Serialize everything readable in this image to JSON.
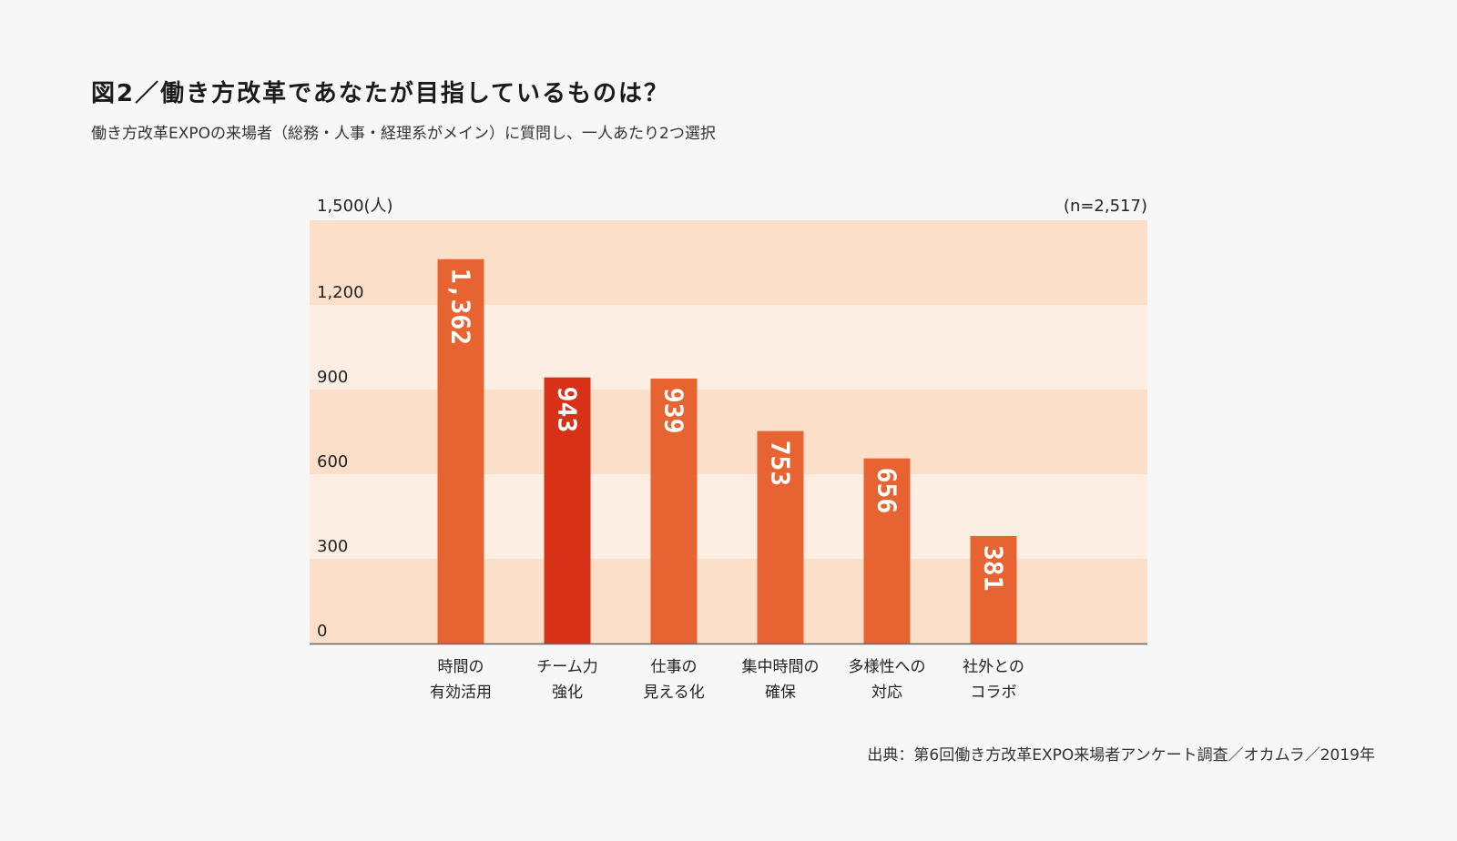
{
  "header": {
    "title": "図2／働き方改革であなたが目指しているものは？",
    "subtitle": "働き方改革EXPOの来場者（総務・人事・経理系がメイン）に質問し、一人あたり2つ選択"
  },
  "footer": {
    "source": "出典：第6回働き方改革EXPO来場者アンケート調査／オカムラ／2019年"
  },
  "colors": {
    "band_dark": "#fcdfc9",
    "band_light": "#fdeee3",
    "bar": "#e86332",
    "bar_highlight": "#d73218",
    "baseline": "#666666"
  },
  "chart_data": {
    "type": "bar",
    "title": "図2／働き方改革であなたが目指しているものは？",
    "ylabel": "1,500(人)",
    "sample_note": "(n=2,517)",
    "ylim": [
      0,
      1500
    ],
    "yticks": [
      {
        "value": 0,
        "label": "0"
      },
      {
        "value": 300,
        "label": "300"
      },
      {
        "value": 600,
        "label": "600"
      },
      {
        "value": 900,
        "label": "900"
      },
      {
        "value": 1200,
        "label": "1,200"
      }
    ],
    "categories": [
      [
        "時間の",
        "有効活用"
      ],
      [
        "チーム力",
        "強化"
      ],
      [
        "仕事の",
        "見える化"
      ],
      [
        "集中時間の",
        "確保"
      ],
      [
        "多様性への",
        "対応"
      ],
      [
        "社外との",
        "コラボ"
      ]
    ],
    "values": [
      1362,
      943,
      939,
      753,
      656,
      381
    ],
    "value_labels": [
      "1,362",
      "943",
      "939",
      "753",
      "656",
      "381"
    ],
    "highlight_index": 1
  }
}
